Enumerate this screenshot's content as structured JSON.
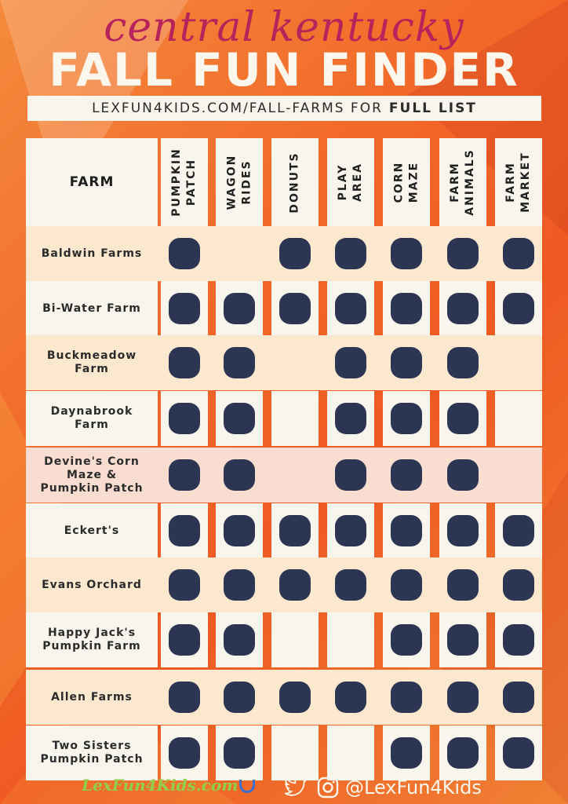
{
  "header": {
    "script_title": "central kentucky",
    "main_title": "FALL FUN FINDER",
    "url_text": "LEXFUN4KIDS.COM/FALL-FARMS FOR",
    "url_bold": "FULL LIST"
  },
  "table": {
    "farm_header": "FARM",
    "columns": [
      {
        "label": "PUMPKIN\nPATCH"
      },
      {
        "label": "WAGON\nRIDES"
      },
      {
        "label": "DONUTS"
      },
      {
        "label": "PLAY\nAREA"
      },
      {
        "label": "CORN\nMAZE"
      },
      {
        "label": "FARM\nANIMALS"
      },
      {
        "label": "FARM\nMARKET"
      }
    ],
    "rows": [
      {
        "name": "Baldwin Farms",
        "marks": [
          1,
          0,
          1,
          1,
          1,
          1,
          1
        ]
      },
      {
        "name": "Bi-Water Farm",
        "marks": [
          1,
          1,
          1,
          1,
          1,
          1,
          1
        ]
      },
      {
        "name": "Buckmeadow\nFarm",
        "marks": [
          1,
          1,
          0,
          1,
          1,
          1,
          0
        ]
      },
      {
        "name": "Daynabrook\nFarm",
        "marks": [
          1,
          1,
          0,
          1,
          1,
          1,
          0
        ]
      },
      {
        "name": "Devine's Corn\nMaze &\nPumpkin Patch",
        "marks": [
          1,
          1,
          0,
          1,
          1,
          1,
          0
        ]
      },
      {
        "name": "Eckert's",
        "marks": [
          1,
          1,
          1,
          1,
          1,
          1,
          1
        ]
      },
      {
        "name": "Evans Orchard",
        "marks": [
          1,
          1,
          1,
          1,
          1,
          1,
          1
        ]
      },
      {
        "name": "Happy Jack's\nPumpkin Farm",
        "marks": [
          1,
          1,
          0,
          0,
          1,
          1,
          1
        ]
      },
      {
        "name": "Allen Farms",
        "marks": [
          1,
          1,
          1,
          1,
          1,
          1,
          1
        ]
      },
      {
        "name": "Two Sisters\nPumpkin Patch",
        "marks": [
          1,
          1,
          0,
          0,
          1,
          1,
          1
        ]
      }
    ]
  },
  "footer": {
    "logo_text": "LexFun4Kids.com",
    "handle": "@LexFun4Kids"
  },
  "colors": {
    "dot": "#2c3652",
    "script_title": "#b7235b",
    "row_light": "#f8f6ec",
    "row_tint": "#fbe8cf",
    "row_pink": "#f8ddd0"
  },
  "icons": [
    "twitter-bird-icon",
    "instagram-icon",
    "horseshoe-icon"
  ]
}
